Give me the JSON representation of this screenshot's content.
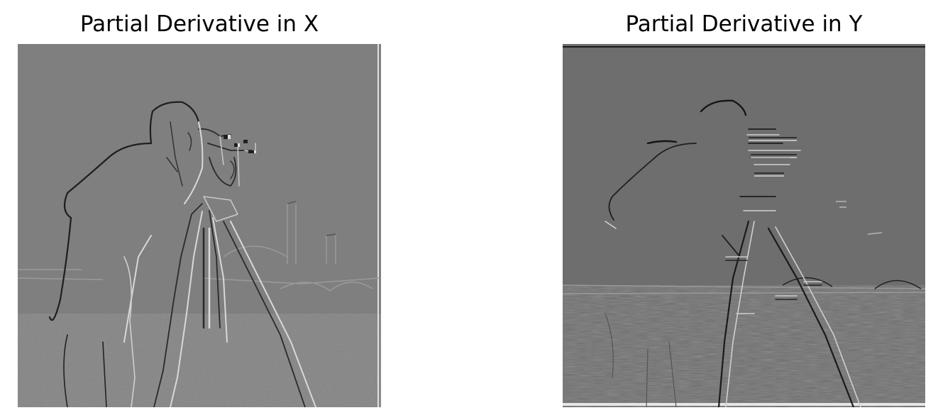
{
  "figure": {
    "panels": [
      {
        "title": "Partial Derivative in X",
        "image": "cameraman-derivative-x-emboss",
        "base_gray": "#7f7f7f"
      },
      {
        "title": "Partial Derivative in Y",
        "image": "cameraman-derivative-y-emboss",
        "base_gray": "#6e6e6e"
      }
    ]
  }
}
